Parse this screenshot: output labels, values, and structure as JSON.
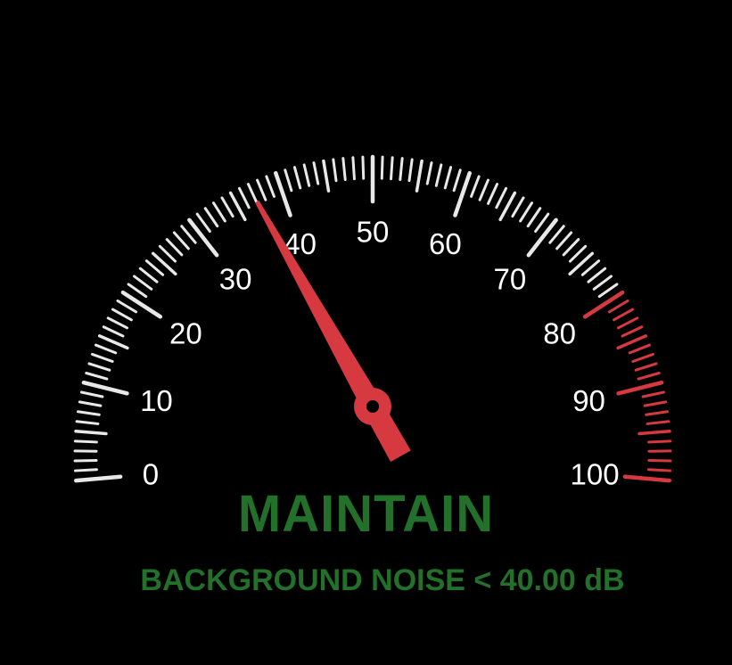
{
  "gauge": {
    "min": 0,
    "max": 100,
    "reading": 34.5,
    "labels": [
      "0",
      "10",
      "20",
      "30",
      "40",
      "50",
      "60",
      "70",
      "80",
      "90",
      "100"
    ],
    "red_zone_start": 80,
    "tick_color": "#e8e8e8",
    "red_color": "#d6393f",
    "needle_color": "#d6393f"
  },
  "status": {
    "title": "MAINTAIN",
    "subtitle": "BACKGROUND NOISE < 40.00 dB",
    "text_color": "#22702a"
  }
}
